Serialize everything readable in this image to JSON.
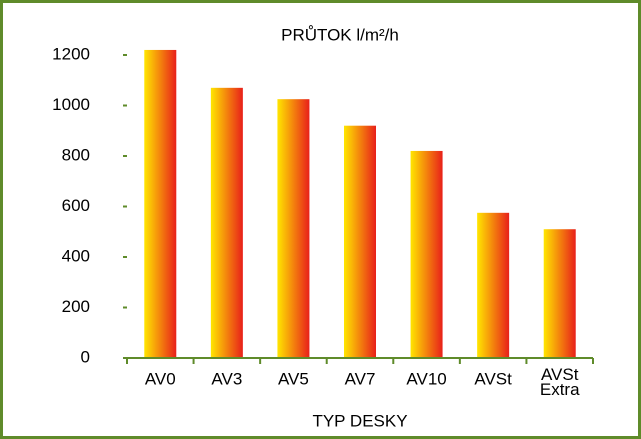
{
  "chart_data": {
    "type": "bar",
    "title": "PRŮTOK l/m²/h",
    "x_label": "TYP DESKY",
    "categories": [
      "AV0",
      "AV3",
      "AV5",
      "AV7",
      "AV10",
      "AVSt",
      "AVSt Extra"
    ],
    "values": [
      1220,
      1070,
      1025,
      920,
      820,
      575,
      510
    ],
    "color": [
      "#ffe600",
      "#e8201a"
    ],
    "ylim": [
      0,
      1200
    ],
    "yticks": [
      0,
      200,
      400,
      600,
      800,
      1000,
      1200
    ],
    "grid": false
  }
}
